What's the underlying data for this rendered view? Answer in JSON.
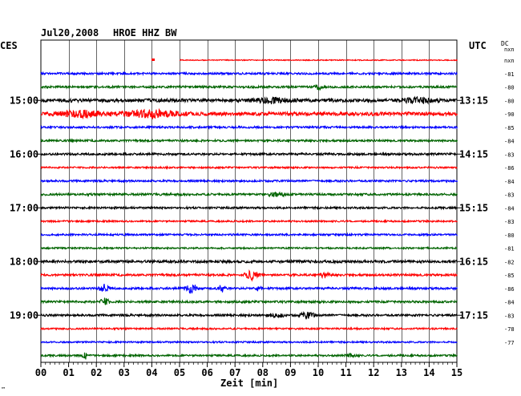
{
  "header": {
    "date": "Jul20,2008",
    "station": "HROE HHZ BW",
    "left_zone": "CES",
    "right_zone": "UTC",
    "dc_label": "DC",
    "dc_sub": "nxn",
    "footer_mark": "™"
  },
  "chart_data": {
    "type": "line",
    "title": "Jul20,2008   HROE HHZ BW",
    "xlabel": "Zeit [min]",
    "xlim": [
      0,
      15
    ],
    "x_ticks": [
      "00",
      "01",
      "02",
      "03",
      "04",
      "05",
      "06",
      "07",
      "08",
      "09",
      "10",
      "11",
      "12",
      "13",
      "14",
      "15"
    ],
    "trace_interval_min": 15,
    "local_time_labels": [
      "15:00",
      "16:00",
      "17:00",
      "18:00",
      "19:00"
    ],
    "utc_time_labels": [
      "13:15",
      "14:15",
      "15:15",
      "16:15",
      "17:15"
    ],
    "dc_offsets": [
      "nxn",
      "-81",
      "-80",
      "-80",
      "-90",
      "-85",
      "-84",
      "-83",
      "-86",
      "-84",
      "-83",
      "-84",
      "-83",
      "-80",
      "-81",
      "-82",
      "-85",
      "-86",
      "-84",
      "-83",
      "-78",
      "-77"
    ],
    "trace_colors": [
      "#ff0000",
      "#0000ff",
      "#006400",
      "#000000"
    ],
    "grid": true,
    "traces": [
      {
        "color": "#ff0000",
        "amplitude": 0.6,
        "gap": [
          0,
          5.0
        ],
        "events": [
          {
            "t": 4.05,
            "amp": 2.2,
            "dur": 0.12
          }
        ]
      },
      {
        "color": "#0000ff",
        "amplitude": 1.2,
        "events": []
      },
      {
        "color": "#006400",
        "amplitude": 1.3,
        "events": [
          {
            "t": 10.0,
            "amp": 2.5,
            "dur": 0.2
          }
        ]
      },
      {
        "color": "#000000",
        "amplitude": 2.0,
        "events": [
          {
            "t": 8.3,
            "amp": 3.0,
            "dur": 1.0
          },
          {
            "t": 13.6,
            "amp": 2.8,
            "dur": 0.9
          }
        ]
      },
      {
        "color": "#ff0000",
        "amplitude": 2.2,
        "events": [
          {
            "t": 1.5,
            "amp": 3.2,
            "dur": 1.4
          },
          {
            "t": 4.0,
            "amp": 3.8,
            "dur": 1.6
          }
        ]
      },
      {
        "color": "#0000ff",
        "amplitude": 1.2,
        "events": []
      },
      {
        "color": "#006400",
        "amplitude": 1.2,
        "events": []
      },
      {
        "color": "#000000",
        "amplitude": 1.3,
        "events": []
      },
      {
        "color": "#ff0000",
        "amplitude": 1.0,
        "events": []
      },
      {
        "color": "#0000ff",
        "amplitude": 1.2,
        "events": []
      },
      {
        "color": "#006400",
        "amplitude": 1.3,
        "events": [
          {
            "t": 8.5,
            "amp": 3.0,
            "dur": 0.4
          }
        ]
      },
      {
        "color": "#000000",
        "amplitude": 1.2,
        "events": []
      },
      {
        "color": "#ff0000",
        "amplitude": 1.0,
        "events": []
      },
      {
        "color": "#0000ff",
        "amplitude": 1.1,
        "events": []
      },
      {
        "color": "#006400",
        "amplitude": 1.0,
        "events": []
      },
      {
        "color": "#000000",
        "amplitude": 1.6,
        "events": []
      },
      {
        "color": "#ff0000",
        "amplitude": 1.3,
        "events": [
          {
            "t": 7.6,
            "amp": 5.5,
            "dur": 0.35
          },
          {
            "t": 10.2,
            "amp": 3.5,
            "dur": 0.25
          }
        ]
      },
      {
        "color": "#0000ff",
        "amplitude": 1.3,
        "events": [
          {
            "t": 2.3,
            "amp": 5.0,
            "dur": 0.25
          },
          {
            "t": 5.4,
            "amp": 6.5,
            "dur": 0.3
          },
          {
            "t": 6.5,
            "amp": 4.5,
            "dur": 0.2
          },
          {
            "t": 7.8,
            "amp": 2.5,
            "dur": 0.2
          }
        ]
      },
      {
        "color": "#006400",
        "amplitude": 1.3,
        "events": [
          {
            "t": 2.3,
            "amp": 5.0,
            "dur": 0.2
          }
        ]
      },
      {
        "color": "#000000",
        "amplitude": 1.3,
        "events": [
          {
            "t": 8.5,
            "amp": 2.5,
            "dur": 0.4
          },
          {
            "t": 9.6,
            "amp": 3.5,
            "dur": 0.4
          }
        ]
      },
      {
        "color": "#ff0000",
        "amplitude": 1.0,
        "events": []
      },
      {
        "color": "#0000ff",
        "amplitude": 1.0,
        "events": []
      },
      {
        "color": "#006400",
        "amplitude": 1.1,
        "events": [
          {
            "t": 1.6,
            "amp": 4.5,
            "dur": 0.15
          },
          {
            "t": 11.2,
            "amp": 2.0,
            "dur": 0.3
          }
        ]
      }
    ]
  }
}
